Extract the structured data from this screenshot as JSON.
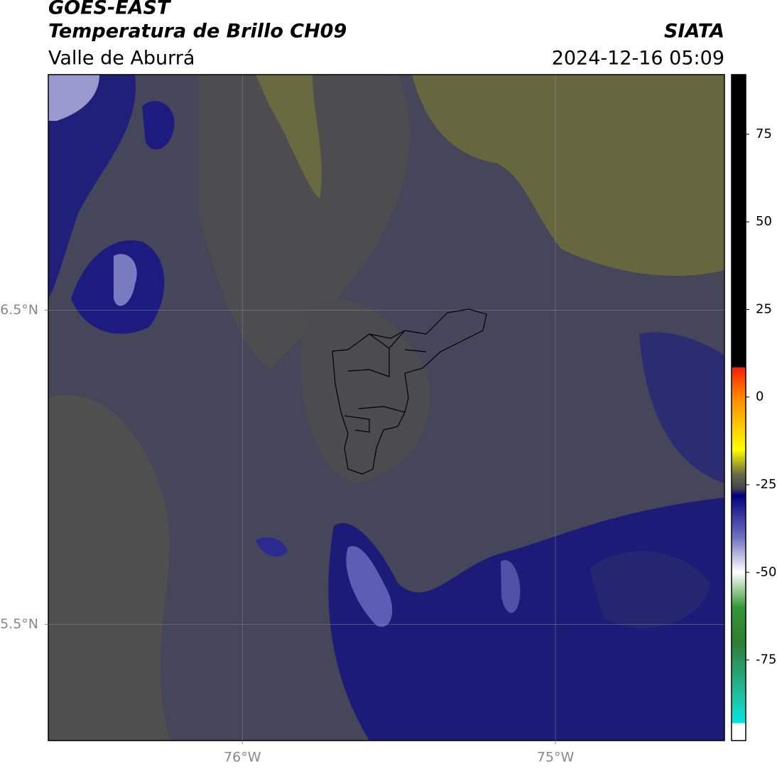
{
  "header": {
    "title": "GOES-EAST",
    "subtitle": "Temperatura de Brillo CH09",
    "region": "Valle de Aburrá",
    "source": "SIATA",
    "datetime": "2024-12-16 05:09"
  },
  "map": {
    "xlim": [
      -76.62,
      -74.46
    ],
    "ylim": [
      5.13,
      7.25
    ],
    "xticks": [
      {
        "value": -76,
        "label": "76°W"
      },
      {
        "value": -75,
        "label": "75°W"
      }
    ],
    "yticks": [
      {
        "value": 5.5,
        "label": "5.5°N"
      },
      {
        "value": 6.5,
        "label": "6.5°N"
      }
    ],
    "grid": true
  },
  "colorbar": {
    "lim": [
      -98,
      92
    ],
    "ticks": [
      -75,
      -50,
      -25,
      0,
      25,
      50,
      75
    ],
    "stops": [
      {
        "value": 92,
        "color": "#000000"
      },
      {
        "value": 8.5,
        "color": "#000000"
      },
      {
        "value": 8.4,
        "color": "#ff2000"
      },
      {
        "value": 0,
        "color": "#ff8800"
      },
      {
        "value": -15,
        "color": "#ffff00"
      },
      {
        "value": -22,
        "color": "#6b6b45"
      },
      {
        "value": -26,
        "color": "#444450"
      },
      {
        "value": -28,
        "color": "#000080"
      },
      {
        "value": -40,
        "color": "#7070c0"
      },
      {
        "value": -50,
        "color": "#ffffff"
      },
      {
        "value": -60,
        "color": "#339933"
      },
      {
        "value": -70,
        "color": "#2e7d32"
      },
      {
        "value": -85,
        "color": "#20c0a0"
      },
      {
        "value": -93,
        "color": "#00e8e0"
      },
      {
        "value": -93.1,
        "color": "#ffffff"
      },
      {
        "value": -98,
        "color": "#ffffff"
      }
    ]
  }
}
